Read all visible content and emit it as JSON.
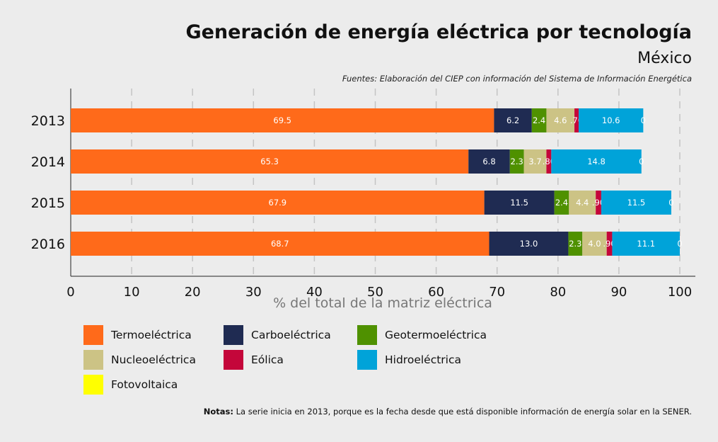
{
  "chart_data": {
    "type": "bar",
    "orientation": "horizontal",
    "stacked": true,
    "title": "Generación de energía eléctrica por tecnología",
    "subtitle": "México",
    "source": "Fuentes: Elaboración del CIEP con información del Sistema de Información Energética",
    "xlabel": "% del total de la matriz eléctrica",
    "xlim": [
      0,
      100
    ],
    "xticks": [
      0,
      10,
      20,
      30,
      40,
      50,
      60,
      70,
      80,
      90,
      100
    ],
    "grid": "vertical dashed",
    "legend_position": "bottom",
    "categories": [
      "2013",
      "2014",
      "2015",
      "2016"
    ],
    "series": [
      {
        "name": "Termoeléctrica",
        "color": "#ff6a1a",
        "values": [
          69.5,
          65.3,
          67.9,
          68.7
        ],
        "labels": [
          "69.5",
          "65.3",
          "67.9",
          "68.7"
        ]
      },
      {
        "name": "Carboeléctrica",
        "color": "#1f2b52",
        "values": [
          6.2,
          6.8,
          11.5,
          13.0
        ],
        "labels": [
          "6.2",
          "6.8",
          "11.5",
          "13.0"
        ]
      },
      {
        "name": "Geotermoeléctrica",
        "color": "#4f9100",
        "values": [
          2.4,
          2.3,
          2.4,
          2.3
        ],
        "labels": [
          "2.4",
          "2.3",
          "2.4",
          "2.3"
        ]
      },
      {
        "name": "Nucleoeléctrica",
        "color": "#ccc385",
        "values": [
          4.6,
          3.7,
          4.4,
          4.0
        ],
        "labels": [
          "4.6",
          "3.7",
          "4.4",
          "4.0"
        ]
      },
      {
        "name": "Eólica",
        "color": "#c4063a",
        "values": [
          0.7,
          0.8,
          0.9,
          0.9
        ],
        "labels": [
          ".70",
          ".80",
          ".90",
          ".90"
        ]
      },
      {
        "name": "Hidroeléctrica",
        "color": "#00a3d9",
        "values": [
          10.6,
          14.8,
          11.5,
          11.1
        ],
        "labels": [
          "10.6",
          "14.8",
          "11.5",
          "11.1"
        ]
      },
      {
        "name": "Fotovoltaica",
        "color": "#ffff00",
        "values": [
          0,
          0,
          0,
          0
        ],
        "labels": [
          "0",
          "0",
          "0",
          "0"
        ]
      }
    ]
  },
  "note_label": "Notas:",
  "note_text": " La serie inicia en 2013, porque es la fecha desde que está disponible información de energía solar en la SENER."
}
